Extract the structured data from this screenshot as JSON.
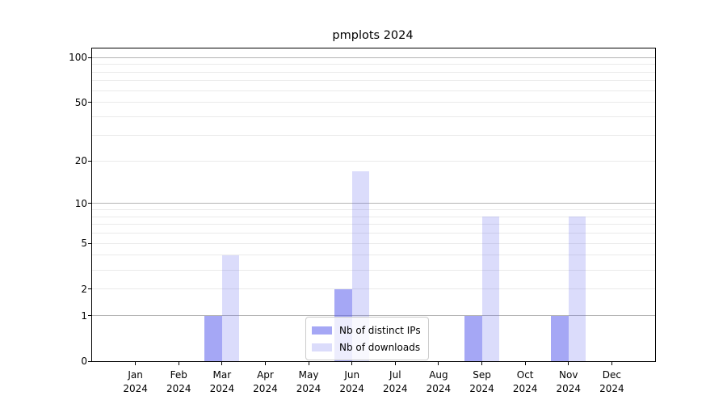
{
  "chart_data": {
    "type": "bar",
    "title": "pmplots 2024",
    "x": {
      "months": [
        "Jan",
        "Feb",
        "Mar",
        "Apr",
        "May",
        "Jun",
        "Jul",
        "Aug",
        "Sep",
        "Oct",
        "Nov",
        "Dec"
      ],
      "year": "2024"
    },
    "series": [
      {
        "name": "Nb of distinct IPs",
        "values": [
          0,
          0,
          1,
          0,
          0,
          2,
          0,
          0,
          1,
          0,
          1,
          0
        ],
        "color": "rgba(91,95,237,0.55)"
      },
      {
        "name": "Nb of downloads",
        "values": [
          0,
          0,
          4,
          0,
          0,
          17,
          0,
          0,
          8,
          0,
          8,
          0
        ],
        "color": "rgba(91,95,237,0.22)"
      }
    ],
    "y_axis": {
      "scale": "log1p",
      "tick_labels": [
        0,
        1,
        2,
        5,
        10,
        20,
        50,
        100
      ],
      "major_gridlines": [
        1,
        10,
        100
      ],
      "minor_gridlines": [
        2,
        3,
        4,
        5,
        6,
        7,
        8,
        9,
        20,
        30,
        40,
        50,
        60,
        70,
        80,
        90
      ],
      "top_value": 115,
      "bottom_value": 0
    },
    "legend": {
      "location": "lower center",
      "entries": [
        "Nb of distinct IPs",
        "Nb of downloads"
      ]
    },
    "grid": true
  },
  "colors": {
    "bar_base": "#5b5fed",
    "major_grid": "#b4b4b4",
    "minor_grid": "#eaeaea",
    "axis_frame": "#000000",
    "legend_border": "#cccccc",
    "background": "#ffffff"
  }
}
